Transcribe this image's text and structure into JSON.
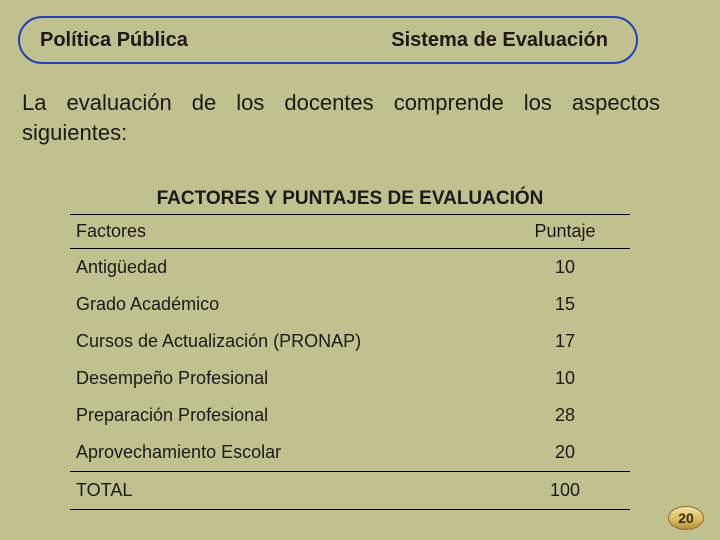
{
  "header": {
    "left": "Política Pública",
    "right": "Sistema de Evaluación",
    "border_color": "#2541b6",
    "fill_color": "#c1c190"
  },
  "description": "La evaluación de los docentes comprende los aspectos siguientes:",
  "table": {
    "title": "FACTORES Y PUNTAJES DE EVALUACIÓN",
    "columns": [
      "Factores",
      "Puntaje"
    ],
    "rows": [
      {
        "factor": "Antigüedad",
        "score": "10"
      },
      {
        "factor": "Grado Académico",
        "score": "15"
      },
      {
        "factor": "Cursos de Actualización (PRONAP)",
        "score": "17"
      },
      {
        "factor": "Desempeño Profesional",
        "score": "10"
      },
      {
        "factor": "Preparación Profesional",
        "score": "28"
      },
      {
        "factor": "Aprovechamiento Escolar",
        "score": "20"
      }
    ],
    "total": {
      "label": "TOTAL",
      "score": "100"
    },
    "title_fontsize": 19,
    "cell_fontsize": 18,
    "border_color": "#000000"
  },
  "page_number": "20",
  "background_color": "#c1c190"
}
